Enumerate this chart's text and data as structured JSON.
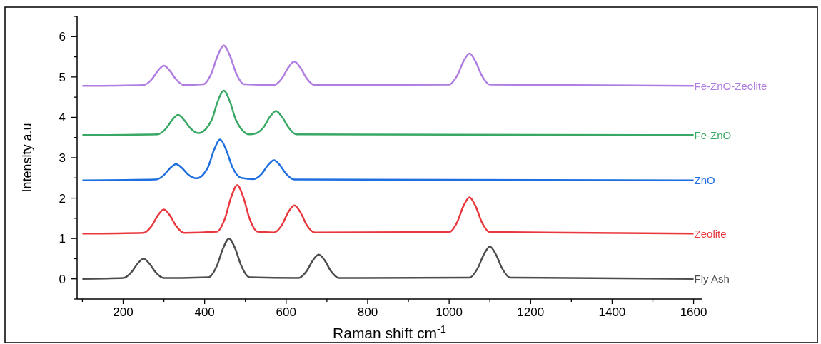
{
  "chart_data": {
    "type": "line",
    "xlabel": "Raman shift cm$^{-1}$",
    "ylabel": "Intensity a.u",
    "xlim": [
      87,
      1620
    ],
    "ylim": [
      -0.5,
      6.5
    ],
    "xticks": [
      {
        "value": 100,
        "label": null
      },
      200,
      {
        "value": 300,
        "label": null
      },
      400,
      {
        "value": 500,
        "label": null
      },
      600,
      {
        "value": 700,
        "label": null
      },
      800,
      {
        "value": 900,
        "label": null
      },
      1000,
      {
        "value": 1100,
        "label": null
      },
      1200,
      {
        "value": 1300,
        "label": null
      },
      1400,
      {
        "value": 1500,
        "label": null
      },
      1600
    ],
    "yticks": [
      {
        "value": -0.5,
        "label": null
      },
      0,
      {
        "value": 0.5,
        "label": null
      },
      1,
      {
        "value": 1.5,
        "label": null
      },
      2,
      {
        "value": 2.5,
        "label": null
      },
      3,
      {
        "value": 3.5,
        "label": null
      },
      4,
      {
        "value": 4.5,
        "label": null
      },
      5,
      {
        "value": 5.5,
        "label": null
      },
      6,
      {
        "value": 6.5,
        "label": null
      }
    ],
    "grid": false,
    "legend": false,
    "marker": "none",
    "line_style": "solid",
    "series": [
      {
        "name": "Fly Ash",
        "color": "#4d4d4d",
        "x": [
          100,
          200,
          220,
          235,
          250,
          265,
          280,
          300,
          410,
          430,
          445,
          460,
          475,
          490,
          510,
          630,
          650,
          665,
          680,
          695,
          710,
          730,
          1050,
          1070,
          1085,
          1100,
          1115,
          1130,
          1150,
          1600
        ],
        "values": [
          0,
          0.02,
          0.16,
          0.37,
          0.5,
          0.37,
          0.16,
          0.02,
          0.04,
          0.32,
          0.75,
          1.0,
          0.75,
          0.32,
          0.04,
          0.02,
          0.19,
          0.45,
          0.6,
          0.45,
          0.19,
          0.02,
          0.03,
          0.26,
          0.6,
          0.8,
          0.6,
          0.26,
          0.03,
          0
        ]
      },
      {
        "name": "Zeolite",
        "color": "#e8383d",
        "x": [
          100,
          250,
          270,
          285,
          300,
          315,
          330,
          350,
          430,
          450,
          465,
          480,
          495,
          510,
          530,
          570,
          590,
          605,
          620,
          635,
          650,
          670,
          1000,
          1020,
          1035,
          1050,
          1065,
          1080,
          1100,
          1600
        ],
        "values": [
          1.12,
          1.14,
          1.31,
          1.57,
          1.72,
          1.57,
          1.31,
          1.14,
          1.17,
          1.5,
          2.02,
          2.32,
          2.02,
          1.5,
          1.17,
          1.15,
          1.34,
          1.65,
          1.82,
          1.65,
          1.34,
          1.15,
          1.16,
          1.41,
          1.8,
          2.02,
          1.8,
          1.41,
          1.16,
          1.12
        ]
      },
      {
        "name": "ZnO",
        "color": "#1f6fe0",
        "x": [
          100,
          280,
          300,
          315,
          330,
          345,
          360,
          380,
          408,
          423,
          438,
          453,
          468,
          490,
          520,
          540,
          555,
          570,
          585,
          600,
          620,
          1600
        ],
        "values": [
          2.44,
          2.46,
          2.57,
          2.74,
          2.84,
          2.74,
          2.58,
          2.49,
          2.76,
          3.19,
          3.45,
          3.19,
          2.77,
          2.5,
          2.47,
          2.6,
          2.81,
          2.94,
          2.81,
          2.6,
          2.46,
          2.44
        ]
      },
      {
        "name": "Fe-ZnO",
        "color": "#3aa865",
        "x": [
          100,
          285,
          305,
          320,
          335,
          350,
          365,
          385,
          417,
          432,
          447,
          462,
          477,
          510,
          525,
          545,
          560,
          575,
          590,
          605,
          625,
          1600
        ],
        "values": [
          3.56,
          3.58,
          3.72,
          3.93,
          4.06,
          3.93,
          3.73,
          3.61,
          3.93,
          4.39,
          4.66,
          4.39,
          3.93,
          3.58,
          3.6,
          3.76,
          4.01,
          4.16,
          4.01,
          3.76,
          3.58,
          3.56
        ]
      },
      {
        "name": "Fe-ZnO-Zeolite",
        "color": "#b07ee0",
        "x": [
          100,
          250,
          270,
          285,
          300,
          315,
          330,
          350,
          397,
          417,
          432,
          447,
          462,
          477,
          497,
          570,
          590,
          605,
          620,
          635,
          650,
          670,
          1000,
          1020,
          1035,
          1050,
          1065,
          1080,
          1100,
          1600
        ],
        "values": [
          4.78,
          4.8,
          4.94,
          5.15,
          5.28,
          5.15,
          4.94,
          4.8,
          4.82,
          5.1,
          5.53,
          5.78,
          5.53,
          5.1,
          4.82,
          4.8,
          4.97,
          5.23,
          5.38,
          5.23,
          4.97,
          4.8,
          4.81,
          5.04,
          5.38,
          5.58,
          5.38,
          5.04,
          4.81,
          4.78
        ]
      }
    ]
  }
}
